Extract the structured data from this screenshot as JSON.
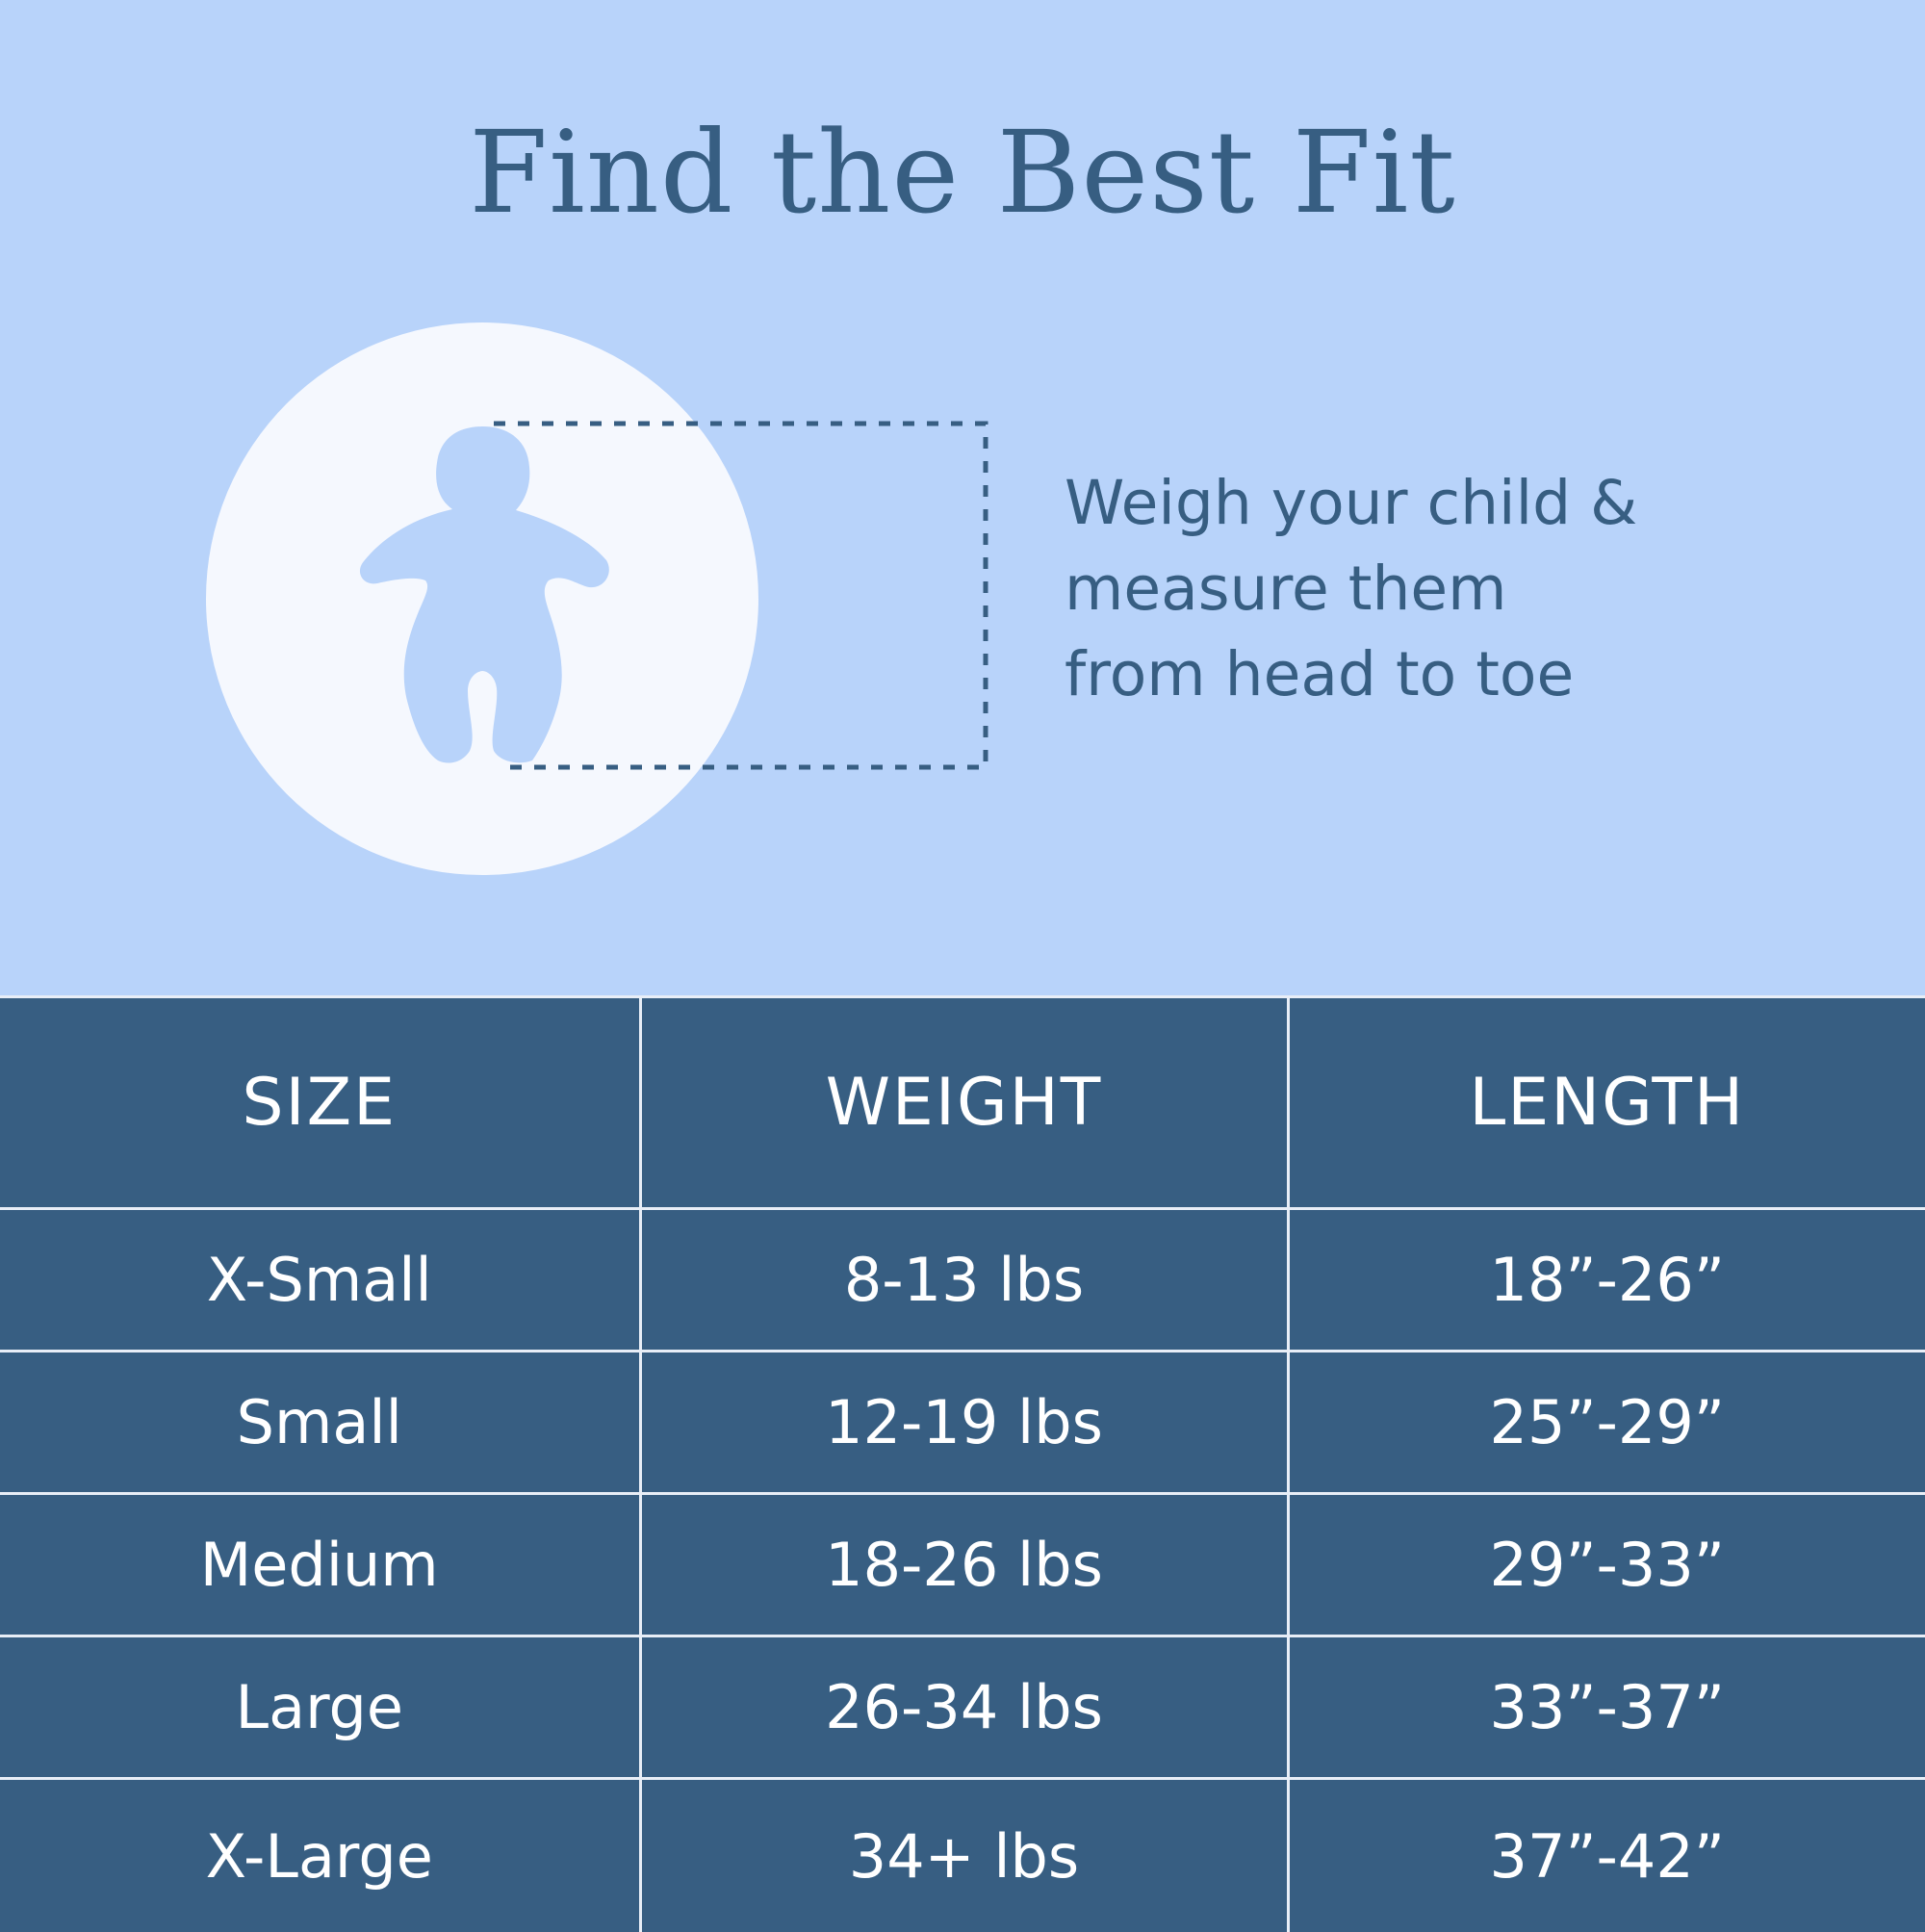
{
  "title": "Find the Best Fit",
  "instructions": [
    "Weigh your child &",
    "measure them",
    "from head to toe"
  ],
  "colors": {
    "background": "#b8d3fa",
    "circle": "#f5f8fe",
    "accent": "#375e82",
    "table_text": "#ffffff"
  },
  "table": {
    "headers": [
      "SIZE",
      "WEIGHT",
      "LENGTH"
    ],
    "rows": [
      [
        "X-Small",
        "8-13 lbs",
        "18”-26”"
      ],
      [
        "Small",
        "12-19 lbs",
        "25”-29”"
      ],
      [
        "Medium",
        "18-26 lbs",
        "29”-33”"
      ],
      [
        "Large",
        "26-34 lbs",
        "33”-37”"
      ],
      [
        "X-Large",
        "34+ lbs",
        "37”-42”"
      ]
    ]
  }
}
